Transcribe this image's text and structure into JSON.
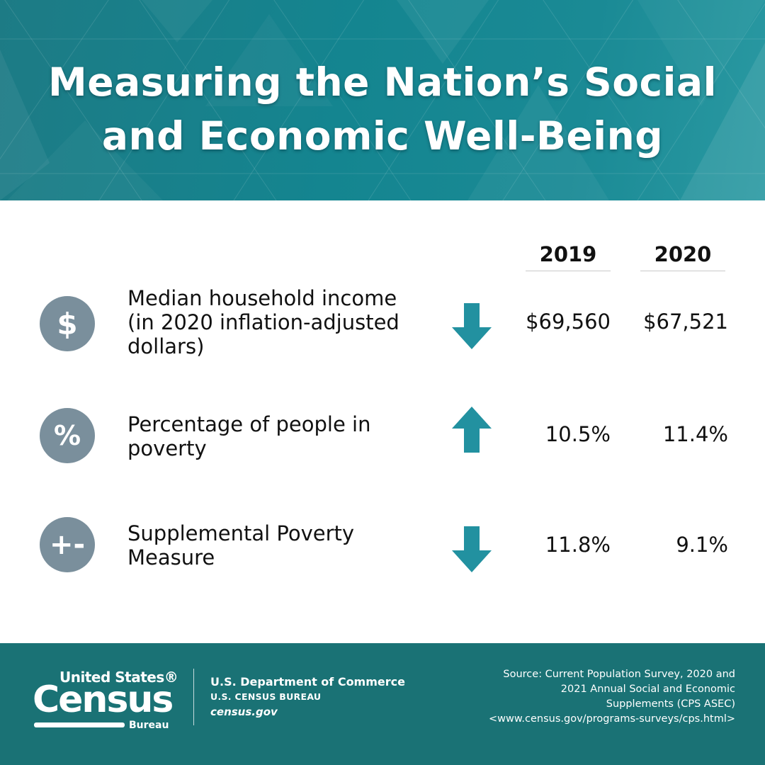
{
  "header": {
    "title_lines": [
      "Measuring the Nation’s Social",
      "and Economic Well-Being"
    ],
    "background_color": "#148590"
  },
  "table": {
    "columns": [
      "2019",
      "2020"
    ],
    "rows": [
      {
        "icon": "dollar-icon",
        "icon_glyph": "$",
        "label_lines": [
          "Median household income",
          "(in 2020 inflation-adjusted",
          "dollars)"
        ],
        "trend": "down",
        "value_2019": "$69,560",
        "value_2020": "$67,521"
      },
      {
        "icon": "percent-icon",
        "icon_glyph": "%",
        "label_lines": [
          "Percentage of people in",
          "poverty"
        ],
        "trend": "up",
        "value_2019": "10.5%",
        "value_2020": "11.4%"
      },
      {
        "icon": "plus-minus-icon",
        "icon_glyph": "+-",
        "label_lines": [
          "Supplemental Poverty",
          "Measure"
        ],
        "trend": "down",
        "value_2019": "11.8%",
        "value_2020": "9.1%"
      }
    ],
    "icon_color": "#7a8f9c",
    "arrow_color": "#2291a0"
  },
  "footer": {
    "logo": {
      "line1": "United States®",
      "line2": "Census",
      "line3": "Bureau"
    },
    "department": "U.S. Department of Commerce",
    "bureau": "U.S. CENSUS BUREAU",
    "website": "census.gov",
    "source_lines": [
      "Source: Current Population Survey, 2020 and",
      "2021 Annual Social and Economic",
      "Supplements (CPS ASEC)",
      "<www.census.gov/programs-surveys/cps.html>"
    ],
    "background_color": "#1a7275"
  }
}
